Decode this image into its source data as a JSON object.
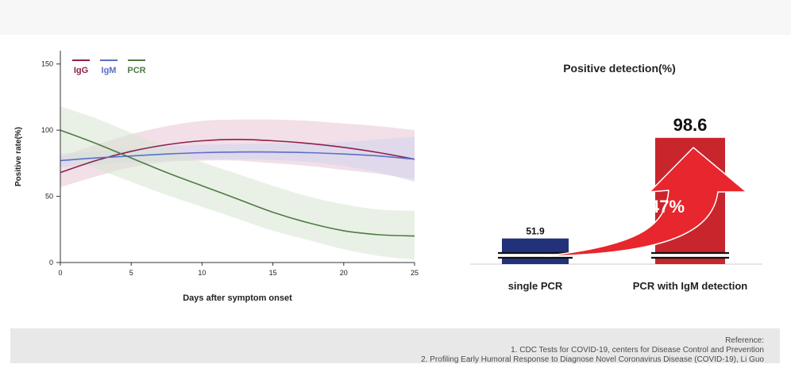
{
  "chart_data": [
    {
      "type": "line",
      "xlabel": "Days after symptom onset",
      "ylabel": "Positive rate(%)",
      "xlim": [
        0,
        25
      ],
      "ylim": [
        0,
        160
      ],
      "x_ticks": [
        "0",
        "5",
        "10",
        "15",
        "20",
        "25"
      ],
      "y_ticks": [
        "0",
        "50",
        "100",
        "150"
      ],
      "grid": false,
      "legend_position": "top-left",
      "series": [
        {
          "name": "IgG",
          "color": "#8e1f4d",
          "band_color": "#e8c4d4",
          "x": [
            0,
            2.5,
            5,
            7.5,
            10,
            12.5,
            15,
            17.5,
            20,
            22.5,
            25
          ],
          "y": [
            68,
            77,
            84,
            89,
            92,
            93,
            92,
            90,
            87,
            83,
            78
          ],
          "lower": [
            57,
            65,
            72,
            76,
            77,
            77,
            75,
            73,
            70,
            67,
            63
          ],
          "upper": [
            80,
            89,
            97,
            103,
            107,
            108,
            108,
            107,
            105,
            103,
            100
          ]
        },
        {
          "name": "IgM",
          "color": "#5b6fc4",
          "band_color": "#d0d4ee",
          "x": [
            0,
            2.5,
            5,
            7.5,
            10,
            12.5,
            15,
            17.5,
            20,
            22.5,
            25
          ],
          "y": [
            77,
            79,
            80.5,
            82,
            83,
            83.5,
            83.5,
            83,
            82,
            80.5,
            78
          ],
          "lower": [
            72,
            74,
            76,
            77,
            78,
            78,
            77.5,
            76,
            73,
            68,
            61
          ],
          "upper": [
            82,
            84,
            86,
            88,
            89,
            89.5,
            90,
            90,
            91,
            93,
            95
          ]
        },
        {
          "name": "PCR",
          "color": "#4f7a45",
          "band_color": "#d7e5d1",
          "x": [
            0,
            2.5,
            5,
            7.5,
            10,
            12.5,
            15,
            17.5,
            20,
            22.5,
            25
          ],
          "y": [
            100,
            90,
            79,
            68,
            58,
            48,
            38,
            30,
            24,
            21,
            20
          ],
          "lower": [
            82,
            71,
            61,
            51,
            42,
            33,
            24,
            17,
            10,
            5,
            2
          ],
          "upper": [
            118,
            109,
            98,
            87,
            76,
            67,
            58,
            50,
            44,
            40,
            39
          ]
        }
      ]
    },
    {
      "type": "bar",
      "title": "Positive detection(%)",
      "categories": [
        "single PCR",
        "PCR with IgM detection"
      ],
      "values": [
        51.9,
        98.6
      ],
      "value_labels": [
        "51.9",
        "98.6"
      ],
      "colors": [
        "#22327a",
        "#c8252d"
      ],
      "axis_break": true,
      "annotation": {
        "text": "47%",
        "color": "#e8262d",
        "from": "single PCR",
        "to": "PCR with IgM detection"
      }
    }
  ],
  "reference": {
    "heading": "Reference:",
    "items": [
      "1. CDC Tests for COVID-19, centers for Disease Control and Prevention",
      "2. Profiling Early Humoral Response to Diagnose Novel Coronavirus Disease (COVID-19), Li Guo"
    ]
  }
}
